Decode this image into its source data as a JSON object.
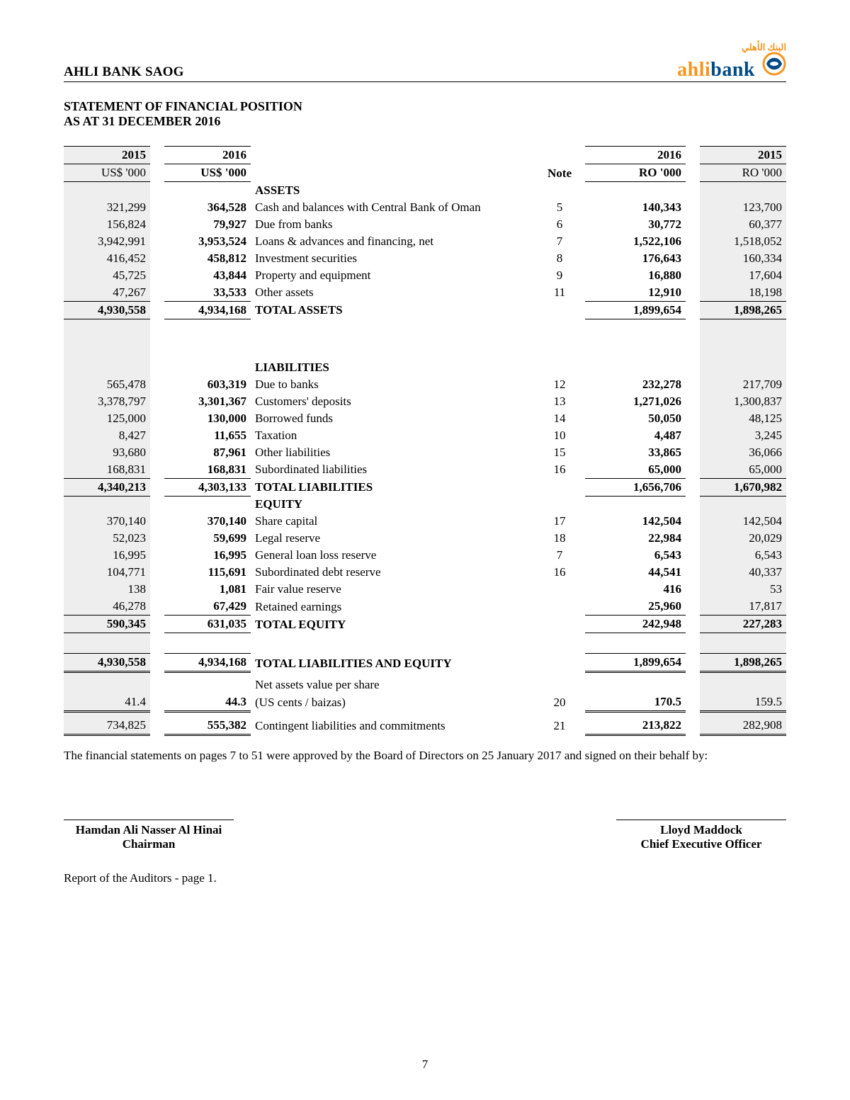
{
  "meta": {
    "company": "AHLI BANK SAOG",
    "logo": {
      "arabic": "البنك الأهلي",
      "brand_prefix": "ahli",
      "brand_suffix": "bank",
      "color_brand": "#004a87",
      "color_accent": "#f7941d"
    },
    "statement_title": "STATEMENT OF FINANCIAL POSITION",
    "as_at": "AS AT 31 DECEMBER 2016",
    "page_number": "7"
  },
  "headers": {
    "usd2015": "2015",
    "usd2016": "2016",
    "note": "Note",
    "ro2016": "2016",
    "ro2015": "2015",
    "usd_unit_2015": "US$ '000",
    "usd_unit_2016": "US$ '000",
    "ro_unit_2016": "RO '000",
    "ro_unit_2015": "RO '000"
  },
  "sections": {
    "assets_label": "ASSETS",
    "liabilities_label": "LIABILITIES",
    "equity_label": "EQUITY",
    "total_assets_label": "TOTAL ASSETS",
    "total_liabilities_label": "TOTAL LIABILITIES",
    "total_equity_label": "TOTAL EQUITY",
    "total_liab_eq_label": "TOTAL LIABILITIES AND EQUITY",
    "nav_label_1": "Net assets value per share",
    "nav_label_2": "(US cents / baizas)",
    "contingent_label": "Contingent liabilities and commitments"
  },
  "assets": [
    {
      "usd2015": "321,299",
      "usd2016": "364,528",
      "desc": "Cash and balances with Central Bank of Oman",
      "note": "5",
      "ro2016": "140,343",
      "ro2015": "123,700"
    },
    {
      "usd2015": "156,824",
      "usd2016": "79,927",
      "desc": "Due from banks",
      "note": "6",
      "ro2016": "30,772",
      "ro2015": "60,377"
    },
    {
      "usd2015": "3,942,991",
      "usd2016": "3,953,524",
      "desc": "Loans & advances and financing, net",
      "note": "7",
      "ro2016": "1,522,106",
      "ro2015": "1,518,052"
    },
    {
      "usd2015": "416,452",
      "usd2016": "458,812",
      "desc": "Investment securities",
      "note": "8",
      "ro2016": "176,643",
      "ro2015": "160,334"
    },
    {
      "usd2015": "45,725",
      "usd2016": "43,844",
      "desc": "Property and equipment",
      "note": "9",
      "ro2016": "16,880",
      "ro2015": "17,604"
    },
    {
      "usd2015": "47,267",
      "usd2016": "33,533",
      "desc": "Other assets",
      "note": "11",
      "ro2016": "12,910",
      "ro2015": "18,198"
    }
  ],
  "assets_total": {
    "usd2015": "4,930,558",
    "usd2016": "4,934,168",
    "ro2016": "1,899,654",
    "ro2015": "1,898,265"
  },
  "liabilities": [
    {
      "usd2015": "565,478",
      "usd2016": "603,319",
      "desc": "Due to banks",
      "note": "12",
      "ro2016": "232,278",
      "ro2015": "217,709"
    },
    {
      "usd2015": "3,378,797",
      "usd2016": "3,301,367",
      "desc": "Customers' deposits",
      "note": "13",
      "ro2016": "1,271,026",
      "ro2015": "1,300,837"
    },
    {
      "usd2015": "125,000",
      "usd2016": "130,000",
      "desc": "Borrowed funds",
      "note": "14",
      "ro2016": "50,050",
      "ro2015": "48,125"
    },
    {
      "usd2015": "8,427",
      "usd2016": "11,655",
      "desc": "Taxation",
      "note": "10",
      "ro2016": "4,487",
      "ro2015": "3,245"
    },
    {
      "usd2015": "93,680",
      "usd2016": "87,961",
      "desc": "Other liabilities",
      "note": "15",
      "ro2016": "33,865",
      "ro2015": "36,066"
    },
    {
      "usd2015": "168,831",
      "usd2016": "168,831",
      "desc": "Subordinated liabilities",
      "note": "16",
      "ro2016": "65,000",
      "ro2015": "65,000"
    }
  ],
  "liabilities_total": {
    "usd2015": "4,340,213",
    "usd2016": "4,303,133",
    "ro2016": "1,656,706",
    "ro2015": "1,670,982"
  },
  "equity": [
    {
      "usd2015": "370,140",
      "usd2016": "370,140",
      "desc": "Share capital",
      "note": "17",
      "ro2016": "142,504",
      "ro2015": "142,504"
    },
    {
      "usd2015": "52,023",
      "usd2016": "59,699",
      "desc": "Legal reserve",
      "note": "18",
      "ro2016": "22,984",
      "ro2015": "20,029"
    },
    {
      "usd2015": "16,995",
      "usd2016": "16,995",
      "desc": "General loan loss reserve",
      "note": "7",
      "ro2016": "6,543",
      "ro2015": "6,543"
    },
    {
      "usd2015": "104,771",
      "usd2016": "115,691",
      "desc": "Subordinated debt reserve",
      "note": "16",
      "ro2016": "44,541",
      "ro2015": "40,337"
    },
    {
      "usd2015": "138",
      "usd2016": "1,081",
      "desc": "Fair value reserve",
      "note": "",
      "ro2016": "416",
      "ro2015": "53"
    },
    {
      "usd2015": "46,278",
      "usd2016": "67,429",
      "desc": "Retained earnings",
      "note": "",
      "ro2016": "25,960",
      "ro2015": "17,817"
    }
  ],
  "equity_total": {
    "usd2015": "590,345",
    "usd2016": "631,035",
    "ro2016": "242,948",
    "ro2015": "227,283"
  },
  "liab_eq_total": {
    "usd2015": "4,930,558",
    "usd2016": "4,934,168",
    "ro2016": "1,899,654",
    "ro2015": "1,898,265"
  },
  "nav": {
    "usd2015": "41.4",
    "usd2016": "44.3",
    "note": "20",
    "ro2016": "170.5",
    "ro2015": "159.5"
  },
  "contingent": {
    "usd2015": "734,825",
    "usd2016": "555,382",
    "note": "21",
    "ro2016": "213,822",
    "ro2015": "282,908"
  },
  "approval_note": "The financial statements on pages 7 to 51 were approved by the Board of Directors on 25 January 2017 and signed on their behalf by:",
  "signatories": {
    "left_name": "Hamdan Ali Nasser Al Hinai",
    "left_title": "Chairman",
    "right_name": "Lloyd Maddock",
    "right_title": "Chief Executive Officer"
  },
  "auditor_ref": "Report of the Auditors - page 1.",
  "style": {
    "page_bg": "#ffffff",
    "shade": "#eeeeee",
    "font_family": "Times New Roman",
    "base_fontsize_pt": 13,
    "header_rule_color": "#000000"
  }
}
